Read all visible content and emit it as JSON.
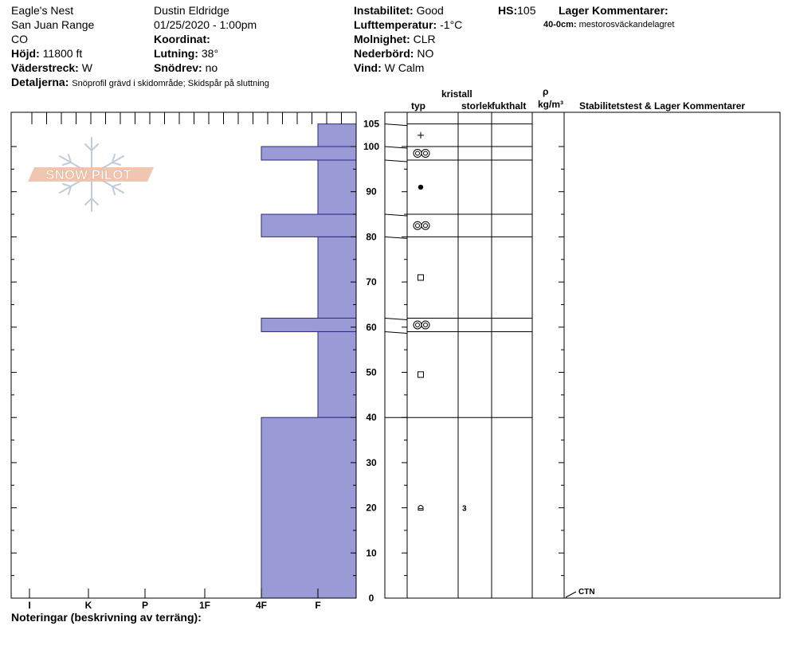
{
  "header": {
    "location": "Eagle's Nest",
    "range": "San Juan Range",
    "state": "CO",
    "elevation_label": "Höjd:",
    "elevation_value": "11800 ft",
    "aspect_label": "Väderstreck:",
    "aspect_value": "W",
    "observer": "Dustin Eldridge",
    "datetime": "01/25/2020 - 1:00pm",
    "coord_label": "Koordinat:",
    "slope_label": "Lutning:",
    "slope_value": "38°",
    "drift_label": "Snödrev:",
    "drift_value": "no",
    "instability_label": "Instabilitet:",
    "instability_value": "Good",
    "airtemp_label": "Lufttemperatur:",
    "airtemp_value": "-1°C",
    "sky_label": "Molnighet:",
    "sky_value": "CLR",
    "precip_label": "Nederbörd:",
    "precip_value": "NO",
    "wind_label": "Vind:",
    "wind_value": "W Calm",
    "hs_label": "HS:",
    "hs_value": "105",
    "layer_comments_label": "Lager Kommentarer:",
    "layer_comment_depth": "40-0cm:",
    "layer_comment_text": "mestorosväckandelagret",
    "details_label": "Detaljerna:",
    "details_value": "Snöprofil grävd i skidområde;  Skidspår på sluttning"
  },
  "columns": {
    "type": "typ",
    "crystal": "kristall",
    "size": "storlek",
    "moisture": "fukthalt",
    "rho": "ρ",
    "density_unit": "kg/m³",
    "stability": "Stabilitetstest & Lager Kommentarer"
  },
  "notes_label": "Noteringar (beskrivning av terräng):",
  "logo_text": "SNOW PILOT",
  "colors": {
    "hardness_bar": "#9a9ad6",
    "bar_outline": "#2a2a80",
    "logo": "#f0c0a8"
  },
  "chart_data": {
    "type": "bar",
    "orientation": "horizontal",
    "x_categories": [
      "I",
      "K",
      "P",
      "1F",
      "4F",
      "F"
    ],
    "y_ticks": [
      0,
      10,
      20,
      30,
      40,
      50,
      60,
      70,
      80,
      90,
      100,
      105
    ],
    "ylim": [
      0,
      105
    ],
    "layers": [
      {
        "top": 105,
        "bottom": 100,
        "hardness": "F",
        "grain": "plus",
        "size": ""
      },
      {
        "top": 100,
        "bottom": 97,
        "hardness": "4F",
        "grain": "double-ring",
        "size": ""
      },
      {
        "top": 97,
        "bottom": 85,
        "hardness": "F",
        "grain": "dot",
        "size": ""
      },
      {
        "top": 85,
        "bottom": 80,
        "hardness": "4F",
        "grain": "double-ring",
        "size": ""
      },
      {
        "top": 80,
        "bottom": 62,
        "hardness": "F",
        "grain": "square",
        "size": ""
      },
      {
        "top": 62,
        "bottom": 59,
        "hardness": "4F",
        "grain": "double-ring",
        "size": ""
      },
      {
        "top": 59,
        "bottom": 40,
        "hardness": "F",
        "grain": "square",
        "size": ""
      },
      {
        "top": 40,
        "bottom": 0,
        "hardness": "4F",
        "grain": "cup",
        "size": "3"
      }
    ],
    "stability_tests": [
      {
        "depth": 0,
        "label": "CTN"
      }
    ]
  }
}
